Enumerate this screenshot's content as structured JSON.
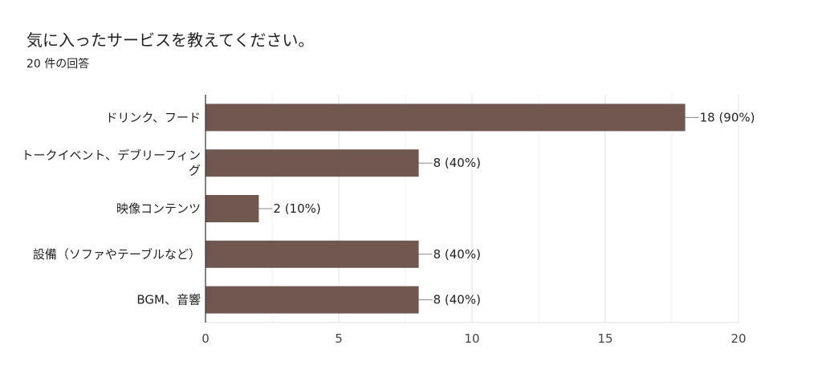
{
  "title": "気に入ったサービスを教えてください。",
  "subtitle": "20 件の回答",
  "chart_data": {
    "type": "bar",
    "orientation": "horizontal",
    "categories": [
      [
        "ドリンク、フード"
      ],
      [
        "トークイベント、デブリーフィン",
        "グ"
      ],
      [
        "映像コンテンツ"
      ],
      [
        "設備（ソファやテーブルなど）"
      ],
      [
        "BGM、音響"
      ]
    ],
    "values": [
      18,
      8,
      2,
      8,
      8
    ],
    "data_labels": [
      "18 (90%)",
      "8 (40%)",
      "2 (10%)",
      "8 (40%)",
      "8 (40%)"
    ],
    "xlim": [
      0,
      20
    ],
    "x_ticks": [
      0,
      5,
      10,
      15,
      20
    ],
    "x_tick_labels": [
      "0",
      "5",
      "10",
      "15",
      "20"
    ],
    "grid": true,
    "bar_color": "#705850",
    "title": "気に入ったサービスを教えてください。",
    "subtitle": "20 件の回答"
  }
}
